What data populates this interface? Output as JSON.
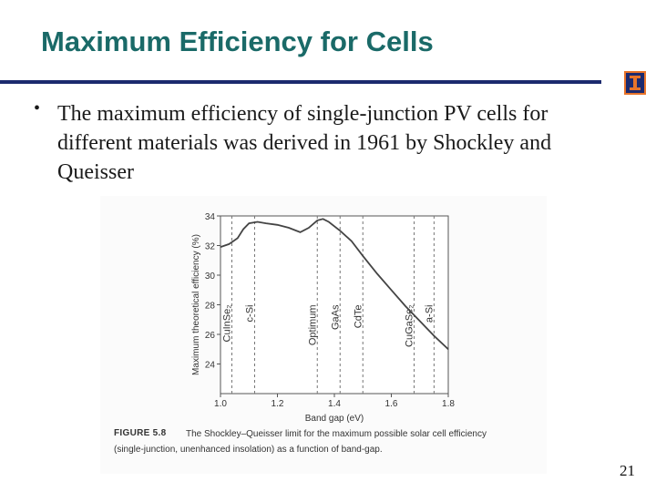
{
  "slide": {
    "title": "Maximum Efficiency for Cells",
    "bullet": "The maximum efficiency of single-junction PV cells for different materials was derived in 1961 by Shockley and Queisser",
    "page_number": "21"
  },
  "figure": {
    "caption_label": "FIGURE 5.8",
    "caption_line1": "The Shockley–Queisser limit for the maximum possible solar cell efficiency",
    "caption_line2": "(single-junction, unenhanced insolation) as a function of band-gap."
  },
  "chart_data": {
    "type": "line",
    "xlabel": "Band gap (eV)",
    "ylabel": "Maximum theoretical efficiency (%)",
    "xlim": [
      1.0,
      1.8
    ],
    "ylim": [
      22,
      34
    ],
    "xticks": [
      "1.0",
      "1.2",
      "1.4",
      "1.6",
      "1.8"
    ],
    "yticks": [
      "24",
      "26",
      "28",
      "30",
      "32",
      "34"
    ],
    "grid": false,
    "series": [
      {
        "x": [
          1.0,
          1.03,
          1.06,
          1.08,
          1.1,
          1.13,
          1.16,
          1.2,
          1.24,
          1.28,
          1.31,
          1.34,
          1.36,
          1.38,
          1.42,
          1.46,
          1.5,
          1.55,
          1.6,
          1.65,
          1.7,
          1.75,
          1.8
        ],
        "y": [
          31.9,
          32.1,
          32.5,
          33.1,
          33.5,
          33.6,
          33.5,
          33.4,
          33.2,
          32.9,
          33.2,
          33.7,
          33.8,
          33.6,
          33.0,
          32.3,
          31.3,
          30.1,
          29.0,
          27.9,
          26.9,
          25.9,
          25.0
        ]
      }
    ],
    "materials": [
      {
        "name": "CuInSe₂",
        "x": 1.04
      },
      {
        "name": "c-Si",
        "x": 1.12
      },
      {
        "name": "Optimum",
        "x": 1.34
      },
      {
        "name": "GaAs",
        "x": 1.42
      },
      {
        "name": "CdTe",
        "x": 1.5
      },
      {
        "name": "CuGaSe₂",
        "x": 1.68
      },
      {
        "name": "a-Si",
        "x": 1.75
      }
    ],
    "line_color": "#444444"
  }
}
